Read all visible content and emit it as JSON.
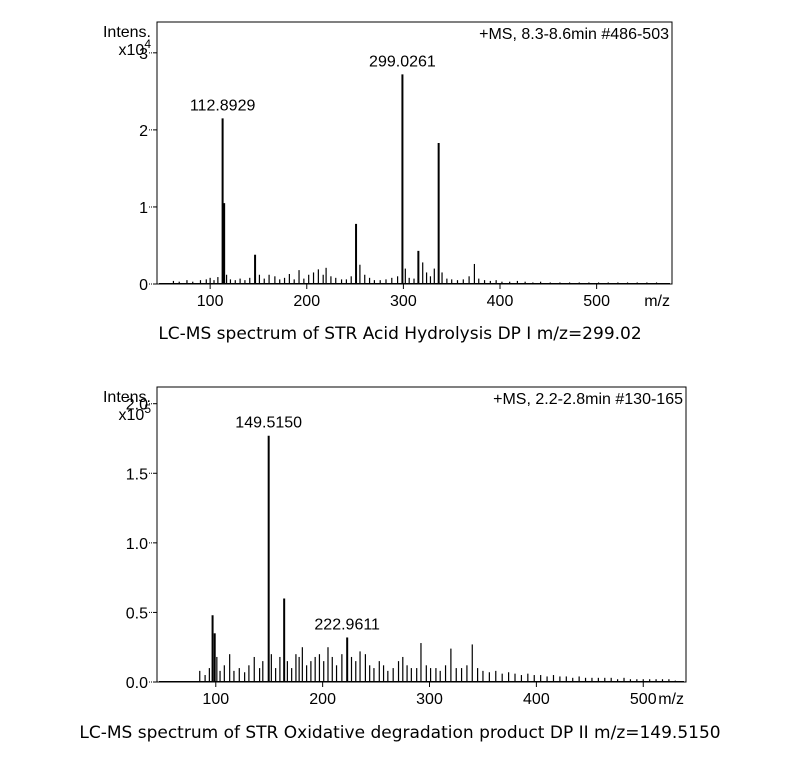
{
  "chart_data": [
    {
      "type": "line",
      "caption": "LC-MS spectrum of STR Acid Hydrolysis DP I m/z=299.02",
      "ylabel": "Intens.",
      "ymultiplier": "x10",
      "yexponent": "4",
      "xlabel": "m/z",
      "header": "+MS, 8.3-8.6min #486-503",
      "xlim": [
        45,
        578
      ],
      "ylim": [
        0,
        3.4
      ],
      "xticks": [
        100,
        200,
        300,
        400,
        500
      ],
      "yticks": [
        0,
        1,
        2,
        3
      ],
      "ytick_labels": [
        "0",
        "1",
        "2",
        "3"
      ],
      "peak_labels": [
        {
          "text": "112.8929",
          "x": 112.9,
          "y": 2.15
        },
        {
          "text": "299.0261",
          "x": 299.0,
          "y": 2.72
        }
      ],
      "peaks": [
        [
          62,
          0.04
        ],
        [
          68,
          0.03
        ],
        [
          76,
          0.05
        ],
        [
          82,
          0.03
        ],
        [
          90,
          0.05
        ],
        [
          96,
          0.06
        ],
        [
          100,
          0.08
        ],
        [
          104,
          0.05
        ],
        [
          108,
          0.09
        ],
        [
          112.9,
          2.15
        ],
        [
          114.5,
          1.05
        ],
        [
          117,
          0.12
        ],
        [
          121,
          0.06
        ],
        [
          126,
          0.05
        ],
        [
          131,
          0.07
        ],
        [
          136,
          0.05
        ],
        [
          141,
          0.08
        ],
        [
          146.5,
          0.38
        ],
        [
          151,
          0.12
        ],
        [
          156,
          0.07
        ],
        [
          161,
          0.12
        ],
        [
          167,
          0.1
        ],
        [
          172,
          0.06
        ],
        [
          177,
          0.08
        ],
        [
          182,
          0.13
        ],
        [
          187,
          0.06
        ],
        [
          192,
          0.18
        ],
        [
          197,
          0.07
        ],
        [
          202,
          0.12
        ],
        [
          207,
          0.15
        ],
        [
          212,
          0.19
        ],
        [
          217,
          0.12
        ],
        [
          220,
          0.21
        ],
        [
          225,
          0.1
        ],
        [
          230,
          0.08
        ],
        [
          236,
          0.06
        ],
        [
          241,
          0.06
        ],
        [
          246,
          0.1
        ],
        [
          251,
          0.78
        ],
        [
          255,
          0.25
        ],
        [
          260,
          0.12
        ],
        [
          265,
          0.08
        ],
        [
          270,
          0.05
        ],
        [
          276,
          0.05
        ],
        [
          282,
          0.06
        ],
        [
          288,
          0.08
        ],
        [
          294,
          0.1
        ],
        [
          299,
          2.72
        ],
        [
          302,
          0.2
        ],
        [
          306,
          0.08
        ],
        [
          311,
          0.07
        ],
        [
          315.5,
          0.43
        ],
        [
          320,
          0.28
        ],
        [
          324,
          0.15
        ],
        [
          328,
          0.1
        ],
        [
          332,
          0.2
        ],
        [
          336.5,
          1.83
        ],
        [
          340,
          0.15
        ],
        [
          345,
          0.07
        ],
        [
          350,
          0.06
        ],
        [
          356,
          0.05
        ],
        [
          362,
          0.06
        ],
        [
          368,
          0.1
        ],
        [
          373.5,
          0.26
        ],
        [
          378,
          0.07
        ],
        [
          384,
          0.05
        ],
        [
          390,
          0.04
        ],
        [
          396,
          0.05
        ],
        [
          402,
          0.03
        ],
        [
          410,
          0.03
        ],
        [
          418,
          0.04
        ],
        [
          426,
          0.03
        ],
        [
          434,
          0.02
        ],
        [
          442,
          0.03
        ],
        [
          452,
          0.02
        ],
        [
          462,
          0.02
        ],
        [
          472,
          0.02
        ],
        [
          482,
          0.02
        ],
        [
          492,
          0.02
        ],
        [
          502,
          0.02
        ],
        [
          512,
          0.02
        ],
        [
          522,
          0.02
        ],
        [
          532,
          0.02
        ],
        [
          542,
          0.02
        ],
        [
          552,
          0.02
        ],
        [
          562,
          0.02
        ],
        [
          570,
          0.01
        ]
      ]
    },
    {
      "type": "line",
      "caption": "LC-MS spectrum of STR Oxidative degradation product DP II m/z=149.5150",
      "ylabel": "Intens.",
      "ymultiplier": "x10",
      "yexponent": "5",
      "xlabel": "m/z",
      "header": "+MS, 2.2-2.8min #130-165",
      "xlim": [
        45,
        540
      ],
      "ylim": [
        0,
        2.12
      ],
      "xticks": [
        100,
        200,
        300,
        400,
        500
      ],
      "yticks": [
        0,
        0.5,
        1.0,
        1.5,
        2.0
      ],
      "ytick_labels": [
        "0.0",
        "0.5",
        "1.0",
        "1.5",
        "2.0"
      ],
      "peak_labels": [
        {
          "text": "149.5150",
          "x": 149.5,
          "y": 1.77
        },
        {
          "text": "222.9611",
          "x": 222.96,
          "y": 0.32
        }
      ],
      "peaks": [
        [
          85,
          0.08
        ],
        [
          90,
          0.05
        ],
        [
          94,
          0.1
        ],
        [
          97,
          0.48
        ],
        [
          99,
          0.35
        ],
        [
          101,
          0.18
        ],
        [
          104,
          0.08
        ],
        [
          108,
          0.12
        ],
        [
          113,
          0.2
        ],
        [
          117,
          0.08
        ],
        [
          122,
          0.1
        ],
        [
          127,
          0.07
        ],
        [
          131,
          0.12
        ],
        [
          136,
          0.18
        ],
        [
          141,
          0.1
        ],
        [
          144,
          0.15
        ],
        [
          149.5,
          1.77
        ],
        [
          152,
          0.2
        ],
        [
          156,
          0.1
        ],
        [
          160,
          0.18
        ],
        [
          164,
          0.6
        ],
        [
          167,
          0.15
        ],
        [
          171,
          0.1
        ],
        [
          175,
          0.2
        ],
        [
          178,
          0.18
        ],
        [
          181,
          0.25
        ],
        [
          185,
          0.12
        ],
        [
          189,
          0.15
        ],
        [
          193,
          0.18
        ],
        [
          197,
          0.2
        ],
        [
          201,
          0.15
        ],
        [
          205,
          0.25
        ],
        [
          209,
          0.18
        ],
        [
          213,
          0.12
        ],
        [
          218,
          0.2
        ],
        [
          222.96,
          0.32
        ],
        [
          227,
          0.18
        ],
        [
          231,
          0.15
        ],
        [
          235,
          0.22
        ],
        [
          240,
          0.2
        ],
        [
          244,
          0.12
        ],
        [
          248,
          0.1
        ],
        [
          253,
          0.15
        ],
        [
          257,
          0.12
        ],
        [
          261,
          0.08
        ],
        [
          266,
          0.1
        ],
        [
          271,
          0.15
        ],
        [
          275,
          0.18
        ],
        [
          279,
          0.12
        ],
        [
          283,
          0.1
        ],
        [
          288,
          0.1
        ],
        [
          292,
          0.28
        ],
        [
          297,
          0.12
        ],
        [
          301,
          0.1
        ],
        [
          306,
          0.1
        ],
        [
          310,
          0.08
        ],
        [
          315,
          0.12
        ],
        [
          320,
          0.24
        ],
        [
          325,
          0.1
        ],
        [
          330,
          0.1
        ],
        [
          335,
          0.12
        ],
        [
          340,
          0.27
        ],
        [
          345,
          0.1
        ],
        [
          350,
          0.08
        ],
        [
          356,
          0.07
        ],
        [
          362,
          0.08
        ],
        [
          368,
          0.06
        ],
        [
          374,
          0.07
        ],
        [
          380,
          0.06
        ],
        [
          386,
          0.05
        ],
        [
          392,
          0.06
        ],
        [
          398,
          0.05
        ],
        [
          404,
          0.05
        ],
        [
          410,
          0.04
        ],
        [
          416,
          0.05
        ],
        [
          422,
          0.04
        ],
        [
          428,
          0.04
        ],
        [
          434,
          0.03
        ],
        [
          440,
          0.04
        ],
        [
          446,
          0.03
        ],
        [
          452,
          0.03
        ],
        [
          458,
          0.03
        ],
        [
          464,
          0.03
        ],
        [
          470,
          0.03
        ],
        [
          476,
          0.02
        ],
        [
          482,
          0.03
        ],
        [
          488,
          0.02
        ],
        [
          494,
          0.02
        ],
        [
          500,
          0.02
        ],
        [
          506,
          0.02
        ],
        [
          512,
          0.02
        ],
        [
          518,
          0.02
        ],
        [
          524,
          0.02
        ],
        [
          530,
          0.01
        ]
      ]
    }
  ]
}
